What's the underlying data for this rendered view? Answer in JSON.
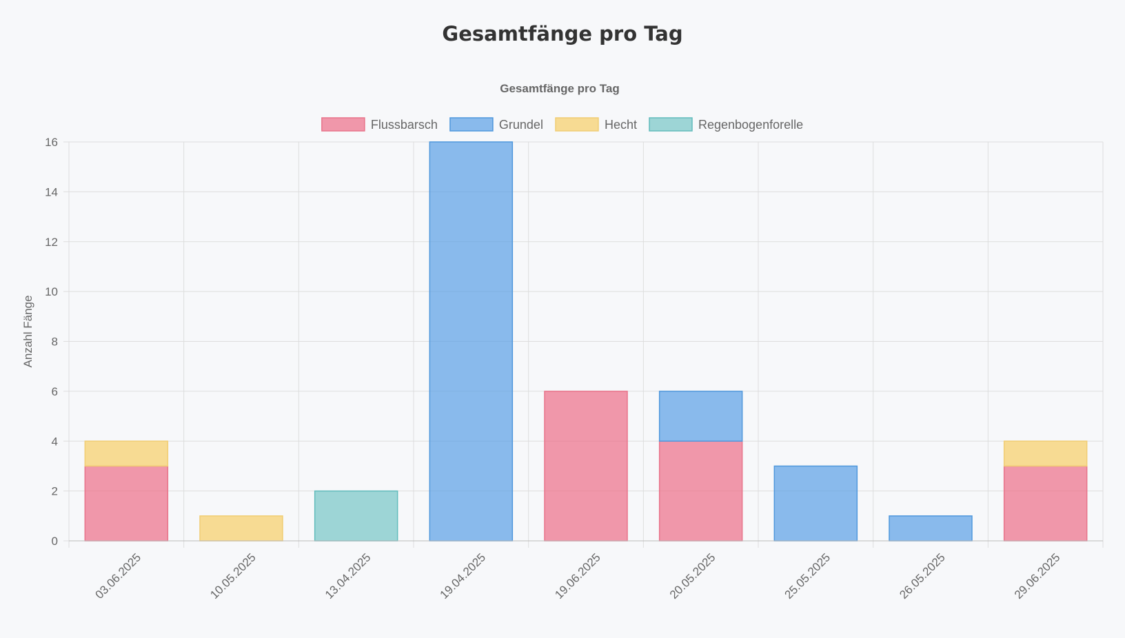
{
  "page": {
    "title": "Gesamtfänge pro Tag"
  },
  "colors": {
    "background": "#f7f8fa",
    "grid": "#dddddd",
    "text": "#666666"
  },
  "chart_data": {
    "type": "bar",
    "stacked": true,
    "title": "Gesamtfänge pro Tag",
    "xlabel": "",
    "ylabel": "Anzahl Fänge",
    "ylim": [
      0,
      16
    ],
    "yticks": [
      0,
      2,
      4,
      6,
      8,
      10,
      12,
      14,
      16
    ],
    "grid": true,
    "legend_position": "top",
    "categories": [
      "03.06.2025",
      "10.05.2025",
      "13.04.2025",
      "19.04.2025",
      "19.06.2025",
      "20.05.2025",
      "25.05.2025",
      "26.05.2025",
      "29.06.2025"
    ],
    "series": [
      {
        "name": "Flussbarsch",
        "values": [
          3,
          0,
          0,
          0,
          6,
          4,
          0,
          0,
          3
        ],
        "fill": "rgba(237,110,135,0.7)",
        "stroke": "#e8738a"
      },
      {
        "name": "Grundel",
        "values": [
          0,
          0,
          0,
          16,
          0,
          2,
          3,
          1,
          0
        ],
        "fill": "rgba(90,160,230,0.7)",
        "stroke": "#4f97dc"
      },
      {
        "name": "Hecht",
        "values": [
          1,
          1,
          0,
          0,
          0,
          0,
          0,
          0,
          1
        ],
        "fill": "rgba(246,206,102,0.7)",
        "stroke": "#f1cd74"
      },
      {
        "name": "Regenbogenforelle",
        "values": [
          0,
          0,
          2,
          0,
          0,
          0,
          0,
          0,
          0
        ],
        "fill": "rgba(96,190,190,0.6)",
        "stroke": "#62bcbc"
      }
    ]
  }
}
